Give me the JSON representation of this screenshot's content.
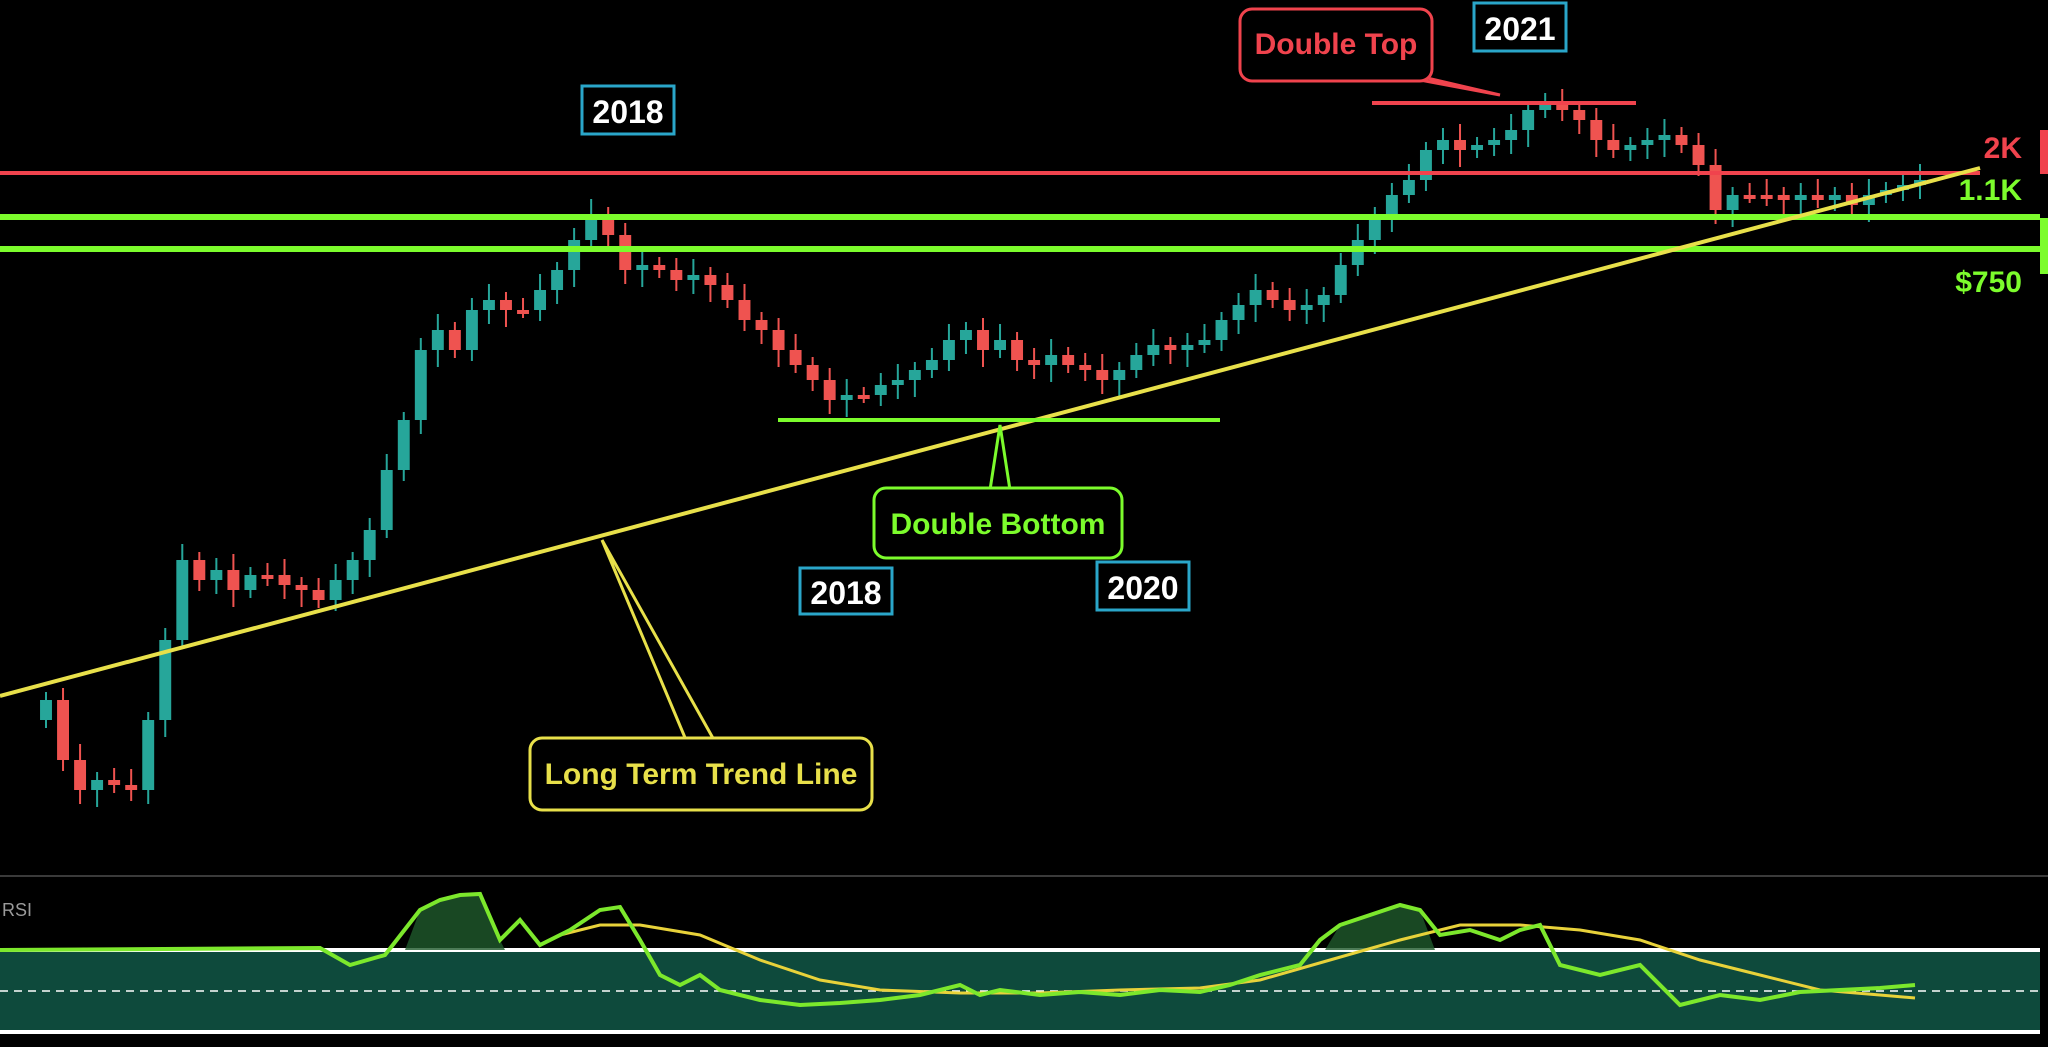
{
  "chart_data": {
    "type": "candlestick",
    "price_labels": [
      {
        "text": "2K",
        "color": "#f0434d"
      },
      {
        "text": "1.1K",
        "color": "#7cfc2c"
      },
      {
        "text": "$750",
        "color": "#7cfc2c"
      }
    ],
    "year_labels": [
      "2018",
      "2018",
      "2020",
      "2021"
    ],
    "annotations": {
      "double_top": "Double Top",
      "double_bottom": "Double Bottom",
      "trend_line": "Long Term Trend Line"
    },
    "candles_count": 96,
    "indicator": {
      "name": "RSI",
      "overbought_zone": true,
      "fill_color": "#0e4a3c"
    },
    "colors": {
      "up": "#26a69a",
      "down": "#ef5350",
      "resistance": "#f0434d",
      "support": "#7cfc2c",
      "trend": "#e8e04a",
      "year_box_border": "#2aa6c9",
      "rsi_line": "#7ce82c",
      "rsi_ma": "#e8d23a"
    }
  }
}
